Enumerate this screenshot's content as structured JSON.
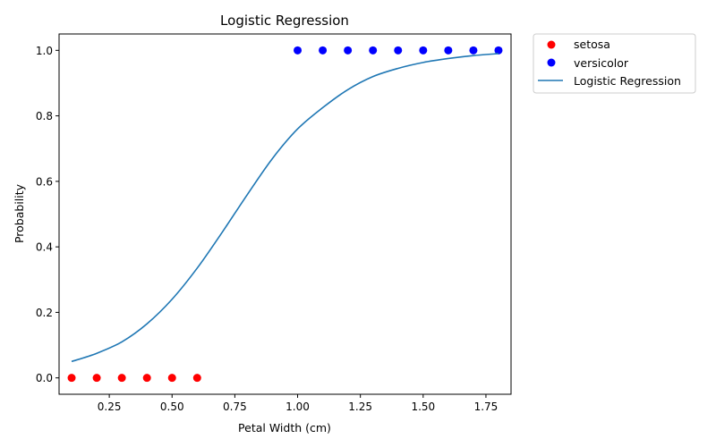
{
  "chart_data": {
    "type": "scatter",
    "title": "Logistic Regression",
    "xlabel": "Petal Width (cm)",
    "ylabel": "Probability",
    "xlim": [
      0.05,
      1.85
    ],
    "ylim": [
      -0.05,
      1.05
    ],
    "xticks": [
      "0.25",
      "0.50",
      "0.75",
      "1.00",
      "1.25",
      "1.50",
      "1.75"
    ],
    "xtick_values": [
      0.25,
      0.5,
      0.75,
      1.0,
      1.25,
      1.5,
      1.75
    ],
    "yticks": [
      "0.0",
      "0.2",
      "0.4",
      "0.6",
      "0.8",
      "1.0"
    ],
    "ytick_values": [
      0.0,
      0.2,
      0.4,
      0.6,
      0.8,
      1.0
    ],
    "grid": false,
    "legend_placement": "outside-top-right",
    "series": [
      {
        "name": "setosa",
        "kind": "scatter",
        "color": "#ff0000",
        "x": [
          0.1,
          0.2,
          0.3,
          0.4,
          0.5,
          0.6
        ],
        "y": [
          0,
          0,
          0,
          0,
          0,
          0
        ]
      },
      {
        "name": "versicolor",
        "kind": "scatter",
        "color": "#0000ff",
        "x": [
          1.0,
          1.1,
          1.2,
          1.3,
          1.4,
          1.5,
          1.6,
          1.7,
          1.8
        ],
        "y": [
          1,
          1,
          1,
          1,
          1,
          1,
          1,
          1,
          1
        ]
      },
      {
        "name": "Logistic Regression",
        "kind": "line",
        "color": "#1f77b4",
        "x": [
          0.1,
          0.2,
          0.3,
          0.4,
          0.5,
          0.6,
          0.7,
          0.8,
          0.9,
          1.0,
          1.1,
          1.2,
          1.3,
          1.4,
          1.5,
          1.6,
          1.7,
          1.8
        ],
        "y": [
          0.05,
          0.075,
          0.11,
          0.165,
          0.24,
          0.335,
          0.445,
          0.56,
          0.67,
          0.76,
          0.825,
          0.88,
          0.92,
          0.945,
          0.963,
          0.975,
          0.984,
          0.99
        ]
      }
    ]
  }
}
